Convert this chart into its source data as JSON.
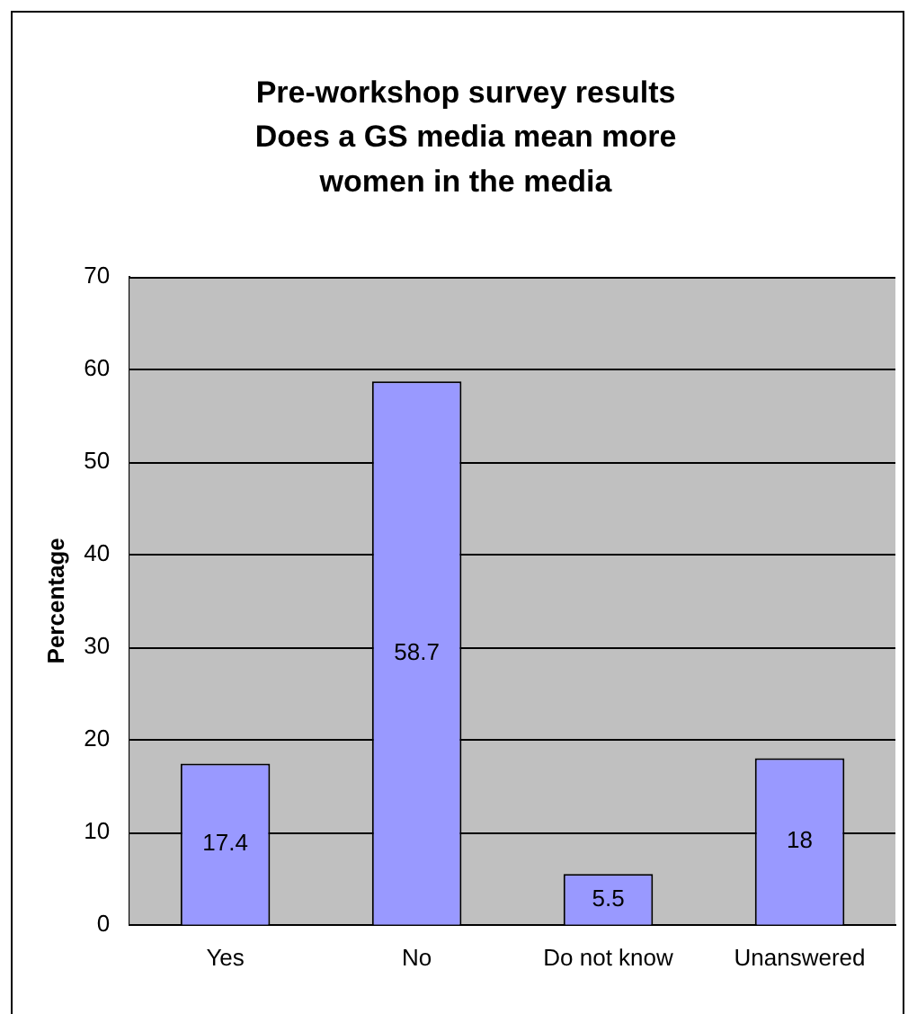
{
  "chart_data": {
    "type": "bar",
    "title": "Pre-workshop survey results\nDoes a GS media mean more\nwomen in the media",
    "ylabel": "Percentage",
    "categories": [
      "Yes",
      "No",
      "Do not know",
      "Unanswered"
    ],
    "values": [
      17.4,
      58.7,
      5.5,
      18
    ],
    "color": "#9999ff",
    "ylim": [
      0,
      70
    ],
    "yticks": [
      0,
      10,
      20,
      30,
      40,
      50,
      60,
      70
    ],
    "grid": "y",
    "legend": false,
    "data_labels": true
  }
}
